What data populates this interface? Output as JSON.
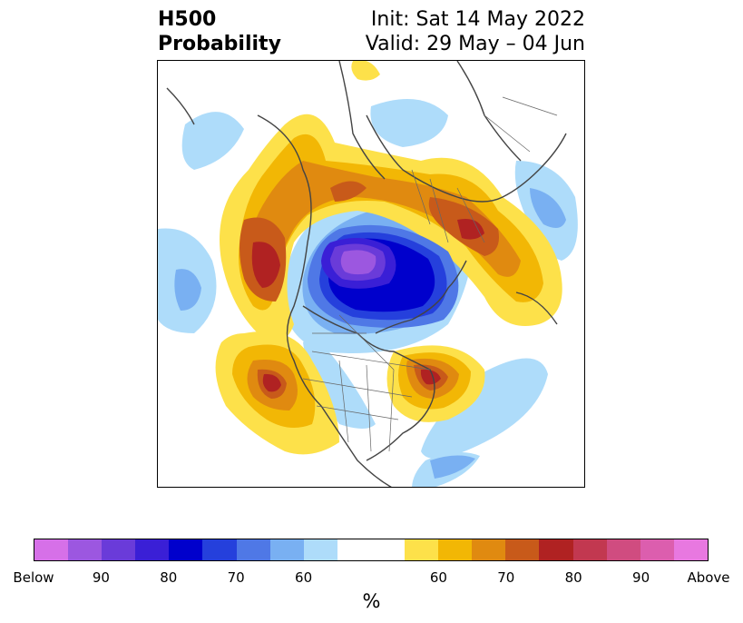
{
  "title": {
    "left_line1": "H500",
    "left_line2": "Probability",
    "right_line1": "Init: Sat 14 May 2022",
    "right_line2": "Valid: 29 May – 04 Jun"
  },
  "map": {
    "projection": "north polar stereographic",
    "features": [
      {
        "name": "polar-below-core",
        "category": "below",
        "peak_percent": 90
      },
      {
        "name": "greenland-below",
        "category": "below",
        "peak_percent": 70
      },
      {
        "name": "pacific-above",
        "category": "above",
        "peak_percent": 80
      },
      {
        "name": "alaska-above",
        "category": "above",
        "peak_percent": 80
      },
      {
        "name": "siberia-above",
        "category": "above",
        "peak_percent": 80
      },
      {
        "name": "western-us-above",
        "category": "above",
        "peak_percent": 80
      },
      {
        "name": "atlantic-canada-above",
        "category": "above",
        "peak_percent": 80
      }
    ]
  },
  "colorbar": {
    "colors": [
      "#d670e8",
      "#9c57e0",
      "#6a3bd9",
      "#3a1fd6",
      "#0000cc",
      "#2540dc",
      "#4f78e6",
      "#79b0f2",
      "#aedcfa",
      "#ffffff",
      "#ffffff",
      "#fde14a",
      "#f2b705",
      "#e08a10",
      "#c85a1a",
      "#b02222",
      "#c23850",
      "#d04c80",
      "#dc5eae",
      "#e878e0"
    ],
    "tick_labels": [
      "Below",
      "90",
      "80",
      "70",
      "60",
      "60",
      "70",
      "80",
      "90",
      "Above"
    ],
    "tick_fractions": [
      0.0,
      0.1,
      0.2,
      0.3,
      0.4,
      0.6,
      0.7,
      0.8,
      0.9,
      1.0
    ],
    "unit_label": "%"
  }
}
